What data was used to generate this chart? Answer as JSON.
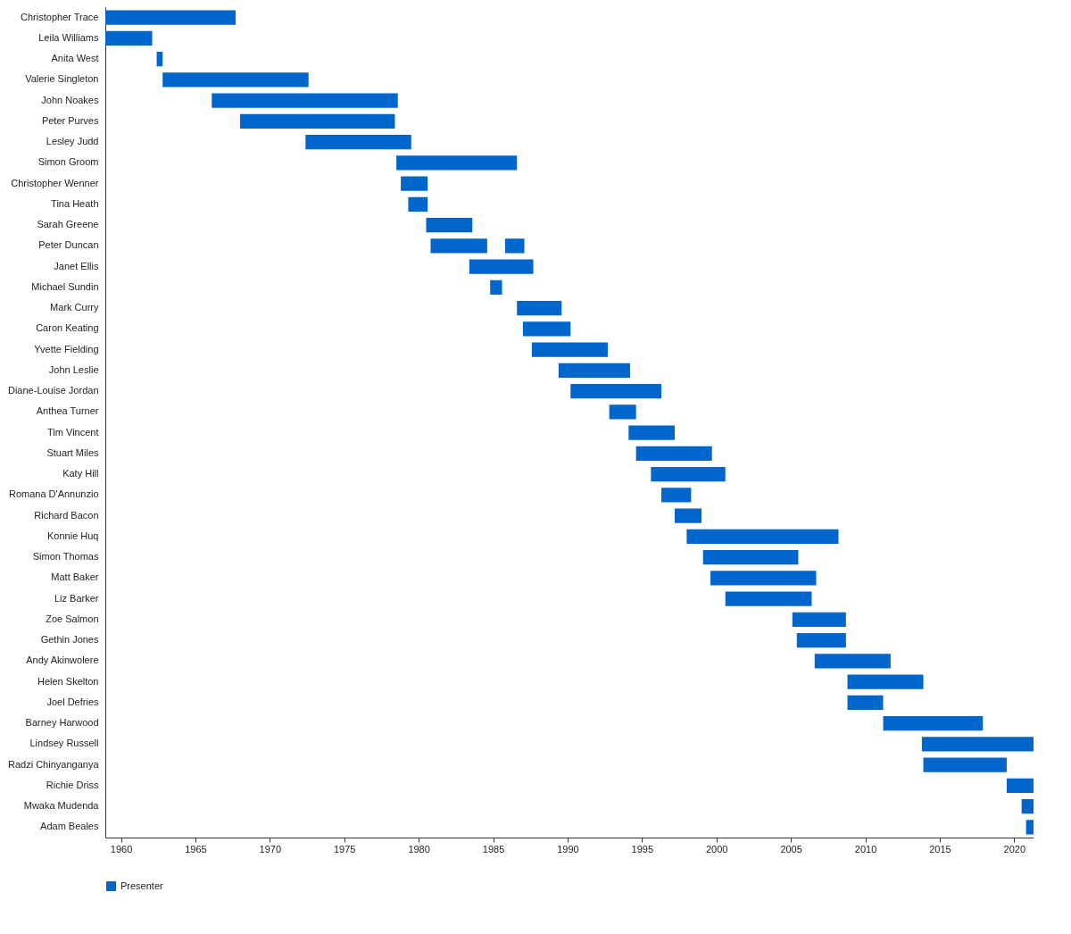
{
  "chart_data": {
    "type": "bar",
    "orientation": "horizontal",
    "categories": [
      "Christopher Trace",
      "Leila Williams",
      "Anita West",
      "Valerie Singleton",
      "John Noakes",
      "Peter Purves",
      "Lesley Judd",
      "Simon Groom",
      "Christopher Wenner",
      "Tina Heath",
      "Sarah Greene",
      "Peter Duncan",
      "Janet Ellis",
      "Michael Sundin",
      "Mark Curry",
      "Caron Keating",
      "Yvette Fielding",
      "John Leslie",
      "Diane-Louise Jordan",
      "Anthea Turner",
      "Tim Vincent",
      "Stuart Miles",
      "Katy Hill",
      "Romana D'Annunzio",
      "Richard Bacon",
      "Konnie Huq",
      "Simon Thomas",
      "Matt Baker",
      "Liz Barker",
      "Zoe Salmon",
      "Gethin Jones",
      "Andy Akinwolere",
      "Helen Skelton",
      "Joel Defries",
      "Barney Harwood",
      "Lindsey Russell",
      "Radzi Chinyanganya",
      "Richie Driss",
      "Mwaka Mudenda",
      "Adam Beales"
    ],
    "series": [
      {
        "name": "Presenter",
        "color": "#0066cc",
        "base": [
          1958.95,
          1958.95,
          1962.4,
          1962.8,
          1966.1,
          1968.0,
          1972.4,
          1978.5,
          1978.8,
          1979.3,
          1980.5,
          1980.8,
          1983.4,
          1984.8,
          1986.6,
          1987.0,
          1987.6,
          1989.4,
          1990.2,
          1992.8,
          1994.1,
          1994.6,
          1995.6,
          1996.3,
          1997.2,
          1998.0,
          1999.1,
          1999.6,
          2000.6,
          2005.1,
          2005.4,
          2006.6,
          2008.8,
          2008.8,
          2011.2,
          2013.8,
          2013.9,
          2019.5,
          2020.5,
          2020.8
        ],
        "values": [
          8.75,
          3.15,
          0.4,
          9.8,
          12.5,
          10.4,
          7.1,
          8.1,
          1.8,
          1.3,
          3.1,
          3.8,
          4.3,
          0.8,
          3.0,
          3.2,
          5.1,
          4.8,
          6.1,
          1.8,
          3.1,
          5.1,
          5.0,
          2.0,
          1.8,
          10.2,
          6.4,
          7.1,
          5.8,
          3.6,
          3.3,
          5.1,
          5.1,
          2.4,
          6.7,
          7.5,
          5.6,
          1.8,
          0.8,
          0.5
        ]
      },
      {
        "color": "#0066cc",
        "base": [
          null,
          null,
          null,
          null,
          null,
          null,
          null,
          null,
          null,
          null,
          null,
          1985.8,
          null,
          null,
          null,
          null,
          null,
          null,
          null,
          null,
          null,
          null,
          null,
          null,
          null,
          null,
          null,
          null,
          null,
          null,
          null,
          null,
          null,
          null,
          null,
          null,
          null,
          null,
          null,
          null
        ],
        "values": [
          null,
          null,
          null,
          null,
          null,
          null,
          null,
          null,
          null,
          null,
          null,
          1.3,
          null,
          null,
          null,
          null,
          null,
          null,
          null,
          null,
          null,
          null,
          null,
          null,
          null,
          null,
          null,
          null,
          null,
          null,
          null,
          null,
          null,
          null,
          null,
          null,
          null,
          null,
          null,
          null
        ]
      }
    ],
    "xlim": [
      1958.95,
      2021.3
    ],
    "xticks": [
      1960,
      1965,
      1970,
      1975,
      1980,
      1985,
      1990,
      1995,
      2000,
      2005,
      2010,
      2015,
      2020
    ],
    "legend": "bottom left"
  }
}
